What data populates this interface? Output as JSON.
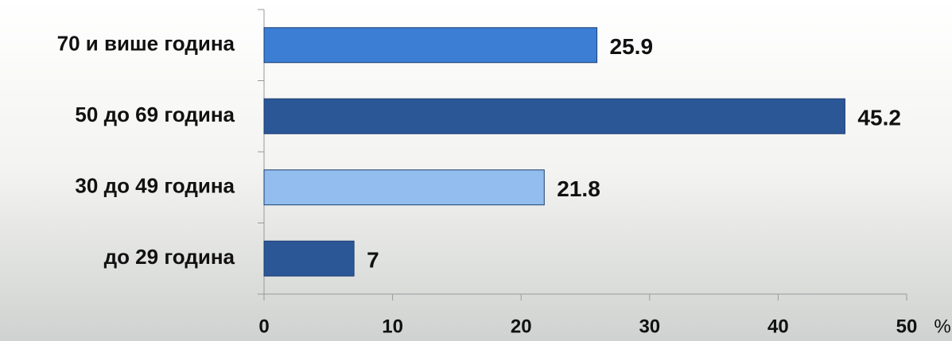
{
  "chart_data": {
    "type": "bar",
    "orientation": "horizontal",
    "categories": [
      "70 и више година",
      "50 до 69 година",
      "30 до 49 година",
      "до 29 година"
    ],
    "values": [
      25.9,
      45.2,
      21.8,
      7
    ],
    "colors": [
      "#3b7ed3",
      "#2b5797",
      "#92bdee",
      "#2b5797"
    ],
    "xlim": [
      0,
      50
    ],
    "xticks": [
      0,
      10,
      20,
      30,
      40,
      50
    ],
    "x_label": "%"
  }
}
